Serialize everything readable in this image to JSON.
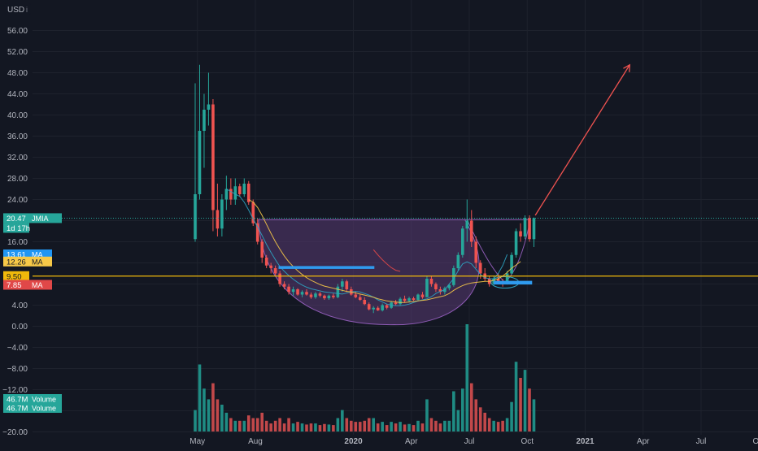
{
  "currency": "USD",
  "currency_suffix": "i",
  "colors": {
    "background": "#131722",
    "grid": "#1e222d",
    "axis_text": "#b2b5be",
    "up": "#26a69a",
    "down": "#ef5350",
    "vol_up": "#1f8c84",
    "vol_down": "#c2484a",
    "ma_teal": "#2ea3c1",
    "ma_yellow": "#f7c948",
    "ma_red": "#e04848",
    "level_line": "#f0b90b",
    "cup_fill": "#5a3a72",
    "cup_stroke": "#8e5bb5",
    "support_bar": "#2f9bef",
    "arrow": "#f05350",
    "price_line": "#26a69a"
  },
  "badges": [
    {
      "id": "price",
      "text": "20.47",
      "label": "JMIA",
      "value": 20.47,
      "color": "#26a69a"
    },
    {
      "id": "countdown",
      "text": "1d 17h",
      "value": 20.47,
      "color": "#26a69a"
    },
    {
      "id": "ma1",
      "text": "13.61",
      "label": "MA",
      "value": 13.61,
      "color": "#2196f3"
    },
    {
      "id": "ma2",
      "text": "12.26",
      "label": "MA",
      "value": 12.26,
      "color": "#f7c948"
    },
    {
      "id": "level",
      "text": "9.50",
      "value": 9.5,
      "color": "#f0b90b"
    },
    {
      "id": "ma3",
      "text": "7.85",
      "label": "MA",
      "value": 7.85,
      "color": "#e04848"
    },
    {
      "id": "vol1",
      "text": "46.7M",
      "label": "Volume",
      "vol_y": 491,
      "color": "#26a69a"
    },
    {
      "id": "vol2",
      "text": "46.7M",
      "label": "Volume",
      "vol_y": 502,
      "color": "#26a69a"
    }
  ],
  "chart_data": {
    "type": "candlestick",
    "symbol": "JMIA",
    "interval": "1W",
    "y_axis": {
      "ticks": [
        56,
        52,
        48,
        44,
        40,
        36,
        32,
        28,
        24,
        20,
        16,
        12,
        8,
        4,
        0,
        -4,
        -8,
        -12,
        -16,
        -20
      ],
      "tick_labels": [
        "56.00",
        "52.00",
        "48.00",
        "44.00",
        "40.00",
        "36.00",
        "32.00",
        "28.00",
        "24.00",
        "20.00",
        "16.00",
        "12.00",
        "8.00",
        "4.00",
        "0.00",
        "−4.00",
        "−8.00",
        "−12.00",
        "",
        "−20.00"
      ],
      "range": [
        -20,
        60
      ]
    },
    "x_axis": {
      "labels": [
        {
          "text": "May",
          "week": 0.5,
          "bold": false
        },
        {
          "text": "Aug",
          "week": 13.5,
          "bold": false
        },
        {
          "text": "2020",
          "week": 35.5,
          "bold": true
        },
        {
          "text": "Apr",
          "week": 48.5,
          "bold": false
        },
        {
          "text": "Jul",
          "week": 61.5,
          "bold": false
        },
        {
          "text": "Oct",
          "week": 74.5,
          "bold": false
        },
        {
          "text": "2021",
          "week": 87.5,
          "bold": true
        },
        {
          "text": "Apr",
          "week": 100.5,
          "bold": false
        },
        {
          "text": "Jul",
          "week": 113.5,
          "bold": false
        },
        {
          "text": "Oct",
          "week": 126.5,
          "bold": false
        }
      ]
    },
    "candles": [
      [
        16.5,
        46.0,
        16.0,
        25.0,
        4.0
      ],
      [
        25.0,
        49.5,
        24.0,
        37.0,
        12.5
      ],
      [
        37.0,
        44.0,
        30.0,
        41.0,
        8.0
      ],
      [
        41.0,
        48.0,
        38.0,
        42.0,
        6.0
      ],
      [
        42.0,
        43.0,
        18.0,
        22.0,
        9.0
      ],
      [
        22.0,
        27.0,
        17.0,
        18.5,
        6.0
      ],
      [
        18.5,
        25.0,
        17.0,
        24.0,
        5.0
      ],
      [
        24.0,
        28.5,
        22.0,
        26.0,
        3.5
      ],
      [
        26.0,
        28.0,
        23.0,
        24.0,
        2.5
      ],
      [
        24.0,
        28.0,
        23.0,
        26.5,
        2.0
      ],
      [
        26.5,
        27.0,
        24.5,
        25.0,
        2.0
      ],
      [
        25.0,
        28.0,
        24.5,
        27.0,
        2.0
      ],
      [
        27.0,
        27.5,
        23.0,
        23.5,
        3.0
      ],
      [
        23.5,
        24.0,
        19.0,
        19.5,
        2.5
      ],
      [
        19.5,
        20.5,
        15.5,
        16.0,
        2.5
      ],
      [
        16.0,
        16.5,
        12.0,
        13.0,
        3.5
      ],
      [
        13.0,
        13.5,
        11.0,
        11.5,
        2.0
      ],
      [
        11.5,
        12.0,
        10.0,
        11.0,
        1.5
      ],
      [
        11.0,
        11.5,
        9.5,
        10.0,
        2.0
      ],
      [
        10.0,
        10.5,
        7.5,
        8.0,
        2.5
      ],
      [
        8.0,
        8.5,
        7.0,
        7.5,
        1.5
      ],
      [
        7.5,
        8.0,
        6.0,
        6.5,
        2.5
      ],
      [
        6.5,
        7.5,
        5.8,
        7.0,
        1.5
      ],
      [
        7.0,
        7.2,
        5.8,
        6.0,
        1.8
      ],
      [
        6.0,
        6.8,
        5.5,
        6.5,
        1.5
      ],
      [
        6.5,
        7.0,
        5.8,
        6.0,
        1.3
      ],
      [
        6.0,
        6.4,
        5.2,
        5.5,
        1.5
      ],
      [
        5.5,
        6.5,
        5.2,
        6.2,
        1.5
      ],
      [
        6.2,
        6.5,
        5.5,
        5.8,
        1.2
      ],
      [
        5.8,
        6.0,
        5.0,
        5.3,
        1.4
      ],
      [
        5.3,
        6.0,
        5.0,
        5.8,
        1.3
      ],
      [
        5.8,
        6.2,
        5.2,
        5.5,
        1.2
      ],
      [
        5.5,
        8.0,
        5.3,
        7.5,
        2.5
      ],
      [
        7.5,
        9.0,
        6.5,
        8.5,
        4.0
      ],
      [
        8.5,
        8.8,
        6.5,
        7.0,
        2.5
      ],
      [
        7.0,
        7.5,
        5.8,
        6.0,
        2.0
      ],
      [
        6.0,
        6.5,
        5.3,
        5.5,
        1.8
      ],
      [
        5.5,
        6.0,
        4.8,
        5.0,
        1.8
      ],
      [
        5.0,
        5.5,
        4.0,
        4.2,
        2.0
      ],
      [
        4.2,
        4.5,
        3.0,
        3.2,
        2.5
      ],
      [
        3.2,
        3.8,
        2.5,
        3.5,
        2.5
      ],
      [
        3.5,
        3.8,
        2.9,
        3.0,
        1.5
      ],
      [
        3.0,
        4.3,
        2.8,
        4.0,
        1.8
      ],
      [
        4.0,
        4.2,
        3.2,
        3.5,
        1.2
      ],
      [
        3.5,
        4.8,
        3.3,
        4.5,
        1.8
      ],
      [
        4.5,
        5.0,
        4.0,
        4.2,
        1.5
      ],
      [
        4.2,
        5.5,
        4.0,
        5.2,
        1.8
      ],
      [
        5.2,
        5.8,
        4.5,
        4.8,
        1.3
      ],
      [
        4.8,
        5.6,
        4.5,
        5.3,
        1.4
      ],
      [
        5.3,
        5.6,
        4.8,
        5.0,
        1.2
      ],
      [
        5.0,
        6.2,
        4.8,
        6.0,
        2.0
      ],
      [
        6.0,
        6.5,
        5.2,
        5.5,
        1.5
      ],
      [
        5.5,
        9.5,
        5.5,
        9.0,
        6.0
      ],
      [
        9.0,
        9.5,
        7.5,
        8.0,
        2.5
      ],
      [
        8.0,
        8.3,
        6.5,
        7.0,
        2.0
      ],
      [
        7.0,
        7.5,
        6.0,
        6.5,
        1.5
      ],
      [
        6.5,
        7.5,
        6.0,
        7.2,
        2.0
      ],
      [
        7.2,
        8.0,
        6.8,
        7.8,
        2.0
      ],
      [
        7.8,
        11.5,
        7.5,
        11.0,
        7.5
      ],
      [
        11.0,
        14.0,
        10.5,
        13.5,
        4.0
      ],
      [
        13.5,
        19.0,
        13.0,
        18.5,
        8.0
      ],
      [
        18.5,
        24.0,
        16.0,
        20.0,
        20.0
      ],
      [
        20.0,
        22.0,
        15.0,
        16.0,
        9.0
      ],
      [
        16.0,
        17.0,
        11.0,
        12.0,
        6.0
      ],
      [
        12.0,
        12.5,
        9.0,
        10.0,
        4.5
      ],
      [
        10.0,
        11.0,
        8.5,
        9.0,
        3.5
      ],
      [
        9.0,
        9.5,
        7.5,
        8.0,
        2.5
      ],
      [
        8.0,
        9.5,
        7.8,
        9.0,
        2.0
      ],
      [
        9.0,
        10.0,
        8.2,
        8.5,
        1.8
      ],
      [
        8.5,
        9.0,
        7.5,
        8.0,
        2.0
      ],
      [
        8.0,
        10.5,
        7.9,
        10.0,
        2.5
      ],
      [
        10.0,
        14.0,
        9.8,
        13.5,
        5.5
      ],
      [
        13.5,
        18.5,
        13.0,
        18.0,
        13.0
      ],
      [
        18.0,
        19.5,
        16.0,
        17.0,
        10.0
      ],
      [
        17.0,
        21.0,
        16.5,
        20.5,
        11.5
      ],
      [
        20.5,
        21.0,
        16.0,
        16.5,
        8.0
      ],
      [
        16.5,
        20.6,
        15.0,
        20.47,
        6.0
      ]
    ],
    "moving_averages": [
      {
        "label": "MA",
        "value": 13.61,
        "color": "#2ea3c1",
        "start_week": 7,
        "points": [
          26.0,
          25.5,
          25.0,
          24.6,
          23.5,
          22.0,
          20.3,
          18.8,
          17.2,
          15.5,
          14.0,
          12.6,
          11.3,
          10.4,
          9.6,
          8.9,
          8.3,
          7.8,
          7.4,
          7.1,
          6.9,
          6.7,
          6.5,
          6.4,
          6.3,
          6.2,
          6.1,
          6.3,
          6.5,
          6.6,
          6.5,
          6.2,
          5.9,
          5.5,
          5.0,
          4.6,
          4.2,
          4.0,
          3.9,
          3.9,
          4.0,
          4.2,
          4.5,
          4.8,
          5.0,
          5.2,
          5.6,
          6.2,
          6.6,
          6.9,
          8.0,
          9.0,
          10.5,
          11.8,
          12.2,
          11.8,
          10.8,
          9.8,
          9.2,
          9.0,
          9.0,
          10.0,
          11.5,
          13.61
        ]
      },
      {
        "label": "MA",
        "value": 12.26,
        "color": "#f7c948",
        "start_week": 12,
        "points": [
          24.0,
          23.5,
          22.5,
          21.0,
          19.3,
          17.6,
          16.0,
          14.6,
          13.3,
          12.2,
          11.3,
          10.5,
          9.8,
          9.2,
          8.7,
          8.3,
          7.9,
          7.6,
          7.4,
          7.2,
          7.0,
          6.8,
          6.6,
          6.5,
          6.3,
          6.1,
          5.9,
          5.7,
          5.5,
          5.2,
          5.0,
          4.8,
          4.7,
          4.6,
          4.5,
          4.5,
          4.6,
          4.7,
          4.8,
          4.9,
          5.0,
          5.2,
          5.4,
          5.6,
          5.8,
          6.2,
          6.8,
          7.3,
          7.7,
          8.0,
          8.2,
          8.3,
          8.4,
          8.5,
          8.5,
          8.7,
          9.0,
          9.5,
          10.2,
          11.0,
          11.6,
          12.26
        ]
      },
      {
        "label": "MA",
        "value": 7.85,
        "color": "#e04848",
        "start_week": 40,
        "points": [
          14.5,
          13.5,
          12.6,
          11.8,
          11.1,
          10.6,
          10.4
        ]
      }
    ]
  }
}
